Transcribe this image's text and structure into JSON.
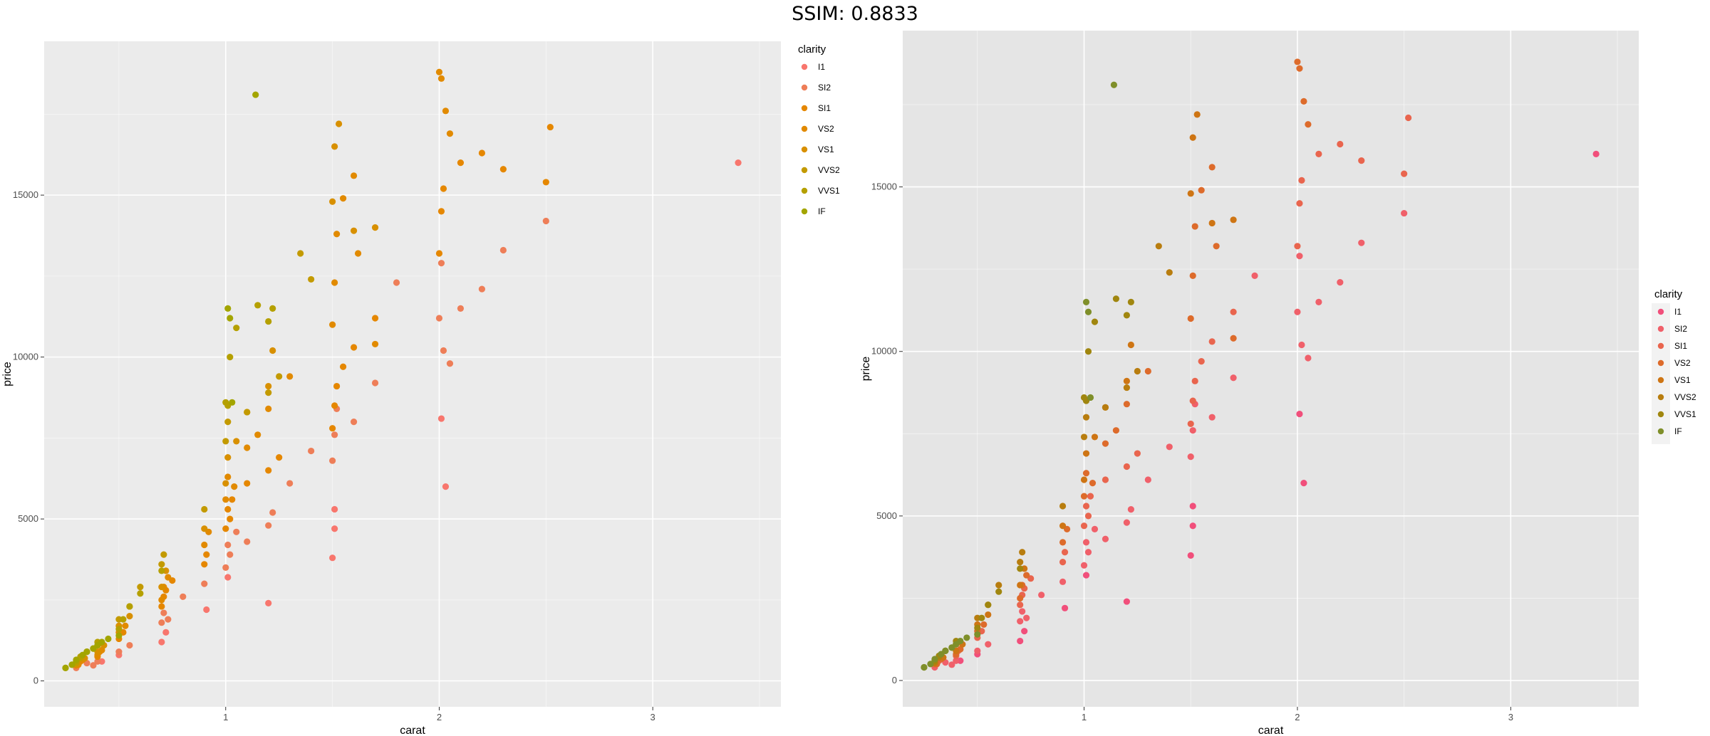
{
  "header": {
    "title": "SSIM: 0.8833"
  },
  "chart_data": [
    {
      "type": "scatter",
      "panel": "left",
      "xlabel": "carat",
      "ylabel": "price",
      "xlim": [
        0.15,
        3.6
      ],
      "ylim": [
        -800,
        19750
      ],
      "xticks": [
        1,
        2,
        3
      ],
      "yticks": [
        0,
        5000,
        10000,
        15000
      ],
      "ytick_labels": [
        "0",
        "5000",
        "10000",
        "15000"
      ],
      "grid": true,
      "legend_position": "right-top",
      "legend_title": "clarity",
      "series": [
        {
          "name": "I1",
          "color": "#F8766D",
          "x": [
            0.42,
            0.5,
            0.7,
            0.72,
            0.91,
            1.01,
            1.2,
            1.5,
            1.51,
            1.51,
            2.03,
            2.01,
            3.4
          ],
          "y": [
            600,
            800,
            1200,
            1500,
            2200,
            3200,
            2400,
            3800,
            4700,
            5300,
            6000,
            8100,
            16000
          ]
        },
        {
          "name": "SI2",
          "color": "#EE7E58",
          "x": [
            0.3,
            0.35,
            0.38,
            0.4,
            0.5,
            0.55,
            0.7,
            0.71,
            0.73,
            0.8,
            0.9,
            1.0,
            1.01,
            1.02,
            1.05,
            1.1,
            1.2,
            1.22,
            1.3,
            1.4,
            1.5,
            1.51,
            1.52,
            1.6,
            1.7,
            1.8,
            2.0,
            2.01,
            2.02,
            2.05,
            2.1,
            2.2,
            2.3,
            2.5
          ],
          "y": [
            400,
            550,
            480,
            600,
            900,
            1100,
            1800,
            2100,
            1900,
            2600,
            3000,
            3500,
            4200,
            3900,
            4600,
            4300,
            4800,
            5200,
            6100,
            7100,
            6800,
            7600,
            8400,
            8000,
            9200,
            12300,
            11200,
            12900,
            10200,
            9800,
            11500,
            12100,
            13300,
            14200
          ]
        },
        {
          "name": "SI1",
          "color": "#E58700",
          "x": [
            0.3,
            0.32,
            0.4,
            0.41,
            0.5,
            0.52,
            0.7,
            0.71,
            0.72,
            0.75,
            0.9,
            0.91,
            1.0,
            1.01,
            1.02,
            1.03,
            1.1,
            1.2,
            1.25,
            1.5,
            1.51,
            1.52,
            1.55,
            1.6,
            1.7,
            2.0,
            2.01,
            2.02,
            2.1,
            2.2,
            2.3,
            2.5,
            2.52
          ],
          "y": [
            480,
            600,
            750,
            900,
            1300,
            1500,
            2300,
            2600,
            2800,
            3100,
            3600,
            3900,
            4700,
            5300,
            5000,
            5600,
            6100,
            6500,
            6900,
            7800,
            8500,
            9100,
            9700,
            10300,
            11200,
            13200,
            14500,
            15200,
            16000,
            16300,
            15800,
            15400,
            17100
          ]
        },
        {
          "name": "VS2",
          "color": "#E18A00",
          "x": [
            0.31,
            0.33,
            0.4,
            0.42,
            0.5,
            0.53,
            0.7,
            0.71,
            0.73,
            0.9,
            0.92,
            1.0,
            1.01,
            1.04,
            1.1,
            1.15,
            1.2,
            1.3,
            1.5,
            1.51,
            1.52,
            1.55,
            1.6,
            1.62,
            1.7,
            2.0,
            2.01,
            2.03,
            2.05
          ],
          "y": [
            500,
            650,
            800,
            950,
            1500,
            1700,
            2500,
            2900,
            3200,
            4200,
            4600,
            5600,
            6300,
            6000,
            7200,
            7600,
            8400,
            9400,
            11000,
            12300,
            13800,
            14900,
            15600,
            13200,
            10400,
            18800,
            18600,
            17600,
            16900
          ]
        },
        {
          "name": "VS1",
          "color": "#D89000",
          "x": [
            0.3,
            0.34,
            0.4,
            0.43,
            0.5,
            0.55,
            0.7,
            0.72,
            0.9,
            1.0,
            1.01,
            1.05,
            1.1,
            1.2,
            1.22,
            1.5,
            1.51,
            1.53,
            1.6,
            1.7
          ],
          "y": [
            520,
            700,
            900,
            1100,
            1700,
            2000,
            2900,
            3400,
            4700,
            6100,
            6900,
            7400,
            8300,
            9100,
            10200,
            14800,
            16500,
            17200,
            13900,
            14000
          ]
        },
        {
          "name": "VVS2",
          "color": "#C39A00",
          "x": [
            0.3,
            0.32,
            0.35,
            0.4,
            0.5,
            0.55,
            0.6,
            0.7,
            0.71,
            0.9,
            1.0,
            1.01,
            1.1,
            1.2,
            1.25,
            1.35,
            1.4
          ],
          "y": [
            550,
            700,
            900,
            1100,
            1900,
            2300,
            2900,
            3600,
            3900,
            5300,
            7400,
            8000,
            8300,
            8900,
            9400,
            13200,
            12400
          ]
        },
        {
          "name": "VVS1",
          "color": "#B5A000",
          "x": [
            0.25,
            0.3,
            0.32,
            0.35,
            0.38,
            0.4,
            0.5,
            0.52,
            0.55,
            0.6,
            0.7,
            1.0,
            1.01,
            1.02,
            1.05,
            1.15,
            1.2,
            1.22
          ],
          "y": [
            400,
            600,
            750,
            900,
            1000,
            1200,
            1600,
            1900,
            2300,
            2700,
            3400,
            8600,
            8500,
            10000,
            10900,
            11600,
            11100,
            11500
          ]
        },
        {
          "name": "IF",
          "color": "#A3A500",
          "x": [
            0.25,
            0.28,
            0.3,
            0.33,
            0.35,
            0.38,
            0.4,
            0.42,
            0.45,
            0.5,
            1.01,
            1.02,
            1.03,
            1.14
          ],
          "y": [
            400,
            500,
            650,
            800,
            900,
            1000,
            1100,
            1200,
            1300,
            1400,
            11500,
            11200,
            8600,
            18100
          ]
        }
      ]
    },
    {
      "type": "scatter",
      "panel": "right",
      "xlabel": "carat",
      "ylabel": "price",
      "xlim": [
        0.15,
        3.6
      ],
      "ylim": [
        -800,
        19750
      ],
      "xticks": [
        1,
        2,
        3
      ],
      "yticks": [
        0,
        5000,
        10000,
        15000
      ],
      "ytick_labels": [
        "0",
        "5000",
        "10000",
        "15000"
      ],
      "grid": true,
      "legend_position": "right-middle",
      "legend_title": "clarity",
      "series": [
        {
          "name": "I1",
          "color": "#F14F7B",
          "x": [
            0.42,
            0.5,
            0.7,
            0.72,
            0.91,
            1.01,
            1.2,
            1.5,
            1.51,
            1.51,
            2.03,
            2.01,
            3.4
          ],
          "y": [
            600,
            800,
            1200,
            1500,
            2200,
            3200,
            2400,
            3800,
            4700,
            5300,
            6000,
            8100,
            16000
          ]
        },
        {
          "name": "SI2",
          "color": "#F0606A",
          "x": [
            0.3,
            0.35,
            0.38,
            0.4,
            0.5,
            0.55,
            0.7,
            0.71,
            0.73,
            0.8,
            0.9,
            1.0,
            1.01,
            1.02,
            1.05,
            1.1,
            1.2,
            1.22,
            1.3,
            1.4,
            1.5,
            1.51,
            1.52,
            1.6,
            1.7,
            1.8,
            2.0,
            2.01,
            2.02,
            2.05,
            2.1,
            2.2,
            2.3,
            2.5
          ],
          "y": [
            400,
            550,
            480,
            600,
            900,
            1100,
            1800,
            2100,
            1900,
            2600,
            3000,
            3500,
            4200,
            3900,
            4600,
            4300,
            4800,
            5200,
            6100,
            7100,
            6800,
            7600,
            8400,
            8000,
            9200,
            12300,
            11200,
            12900,
            10200,
            9800,
            11500,
            12100,
            13300,
            14200
          ]
        },
        {
          "name": "SI1",
          "color": "#E9654E",
          "x": [
            0.3,
            0.32,
            0.4,
            0.41,
            0.5,
            0.52,
            0.7,
            0.71,
            0.72,
            0.75,
            0.9,
            0.91,
            1.0,
            1.01,
            1.02,
            1.03,
            1.1,
            1.2,
            1.25,
            1.5,
            1.51,
            1.52,
            1.55,
            1.6,
            1.7,
            2.0,
            2.01,
            2.02,
            2.1,
            2.2,
            2.3,
            2.5,
            2.52
          ],
          "y": [
            480,
            600,
            750,
            900,
            1300,
            1500,
            2300,
            2600,
            2800,
            3100,
            3600,
            3900,
            4700,
            5300,
            5000,
            5600,
            6100,
            6500,
            6900,
            7800,
            8500,
            9100,
            9700,
            10300,
            11200,
            13200,
            14500,
            15200,
            16000,
            16300,
            15800,
            15400,
            17100
          ]
        },
        {
          "name": "VS2",
          "color": "#DD6B2B",
          "x": [
            0.31,
            0.33,
            0.4,
            0.42,
            0.5,
            0.53,
            0.7,
            0.71,
            0.73,
            0.9,
            0.92,
            1.0,
            1.01,
            1.04,
            1.1,
            1.15,
            1.2,
            1.3,
            1.5,
            1.51,
            1.52,
            1.55,
            1.6,
            1.62,
            1.7,
            2.0,
            2.01,
            2.03,
            2.05
          ],
          "y": [
            500,
            650,
            800,
            950,
            1500,
            1700,
            2500,
            2900,
            3200,
            4200,
            4600,
            5600,
            6300,
            6000,
            7200,
            7600,
            8400,
            9400,
            11000,
            12300,
            13800,
            14900,
            15600,
            13200,
            10400,
            18800,
            18600,
            17600,
            16900
          ]
        },
        {
          "name": "VS1",
          "color": "#CE7514",
          "x": [
            0.3,
            0.34,
            0.4,
            0.43,
            0.5,
            0.55,
            0.7,
            0.72,
            0.9,
            1.0,
            1.01,
            1.05,
            1.1,
            1.2,
            1.22,
            1.5,
            1.51,
            1.53,
            1.6,
            1.7
          ],
          "y": [
            520,
            700,
            900,
            1100,
            1700,
            2000,
            2900,
            3400,
            4700,
            6100,
            6900,
            7400,
            8300,
            9100,
            10200,
            14800,
            16500,
            17200,
            13900,
            14000
          ]
        },
        {
          "name": "VVS2",
          "color": "#B87D0F",
          "x": [
            0.3,
            0.32,
            0.35,
            0.4,
            0.5,
            0.55,
            0.6,
            0.7,
            0.71,
            0.9,
            1.0,
            1.01,
            1.1,
            1.2,
            1.25,
            1.35,
            1.4
          ],
          "y": [
            550,
            700,
            900,
            1100,
            1900,
            2300,
            2900,
            3600,
            3900,
            5300,
            7400,
            8000,
            8300,
            8900,
            9400,
            13200,
            12400
          ]
        },
        {
          "name": "VVS1",
          "color": "#A0860F",
          "x": [
            0.25,
            0.3,
            0.32,
            0.35,
            0.38,
            0.4,
            0.5,
            0.52,
            0.55,
            0.6,
            0.7,
            1.0,
            1.01,
            1.02,
            1.05,
            1.15,
            1.2,
            1.22
          ],
          "y": [
            400,
            600,
            750,
            900,
            1000,
            1200,
            1600,
            1900,
            2300,
            2700,
            3400,
            8600,
            8500,
            10000,
            10900,
            11600,
            11100,
            11500
          ]
        },
        {
          "name": "IF",
          "color": "#7F8F2A",
          "x": [
            0.25,
            0.28,
            0.3,
            0.33,
            0.35,
            0.38,
            0.4,
            0.42,
            0.45,
            0.5,
            1.01,
            1.02,
            1.03,
            1.14
          ],
          "y": [
            400,
            500,
            650,
            800,
            900,
            1000,
            1100,
            1200,
            1300,
            1400,
            11500,
            11200,
            8600,
            18100
          ]
        }
      ]
    }
  ]
}
